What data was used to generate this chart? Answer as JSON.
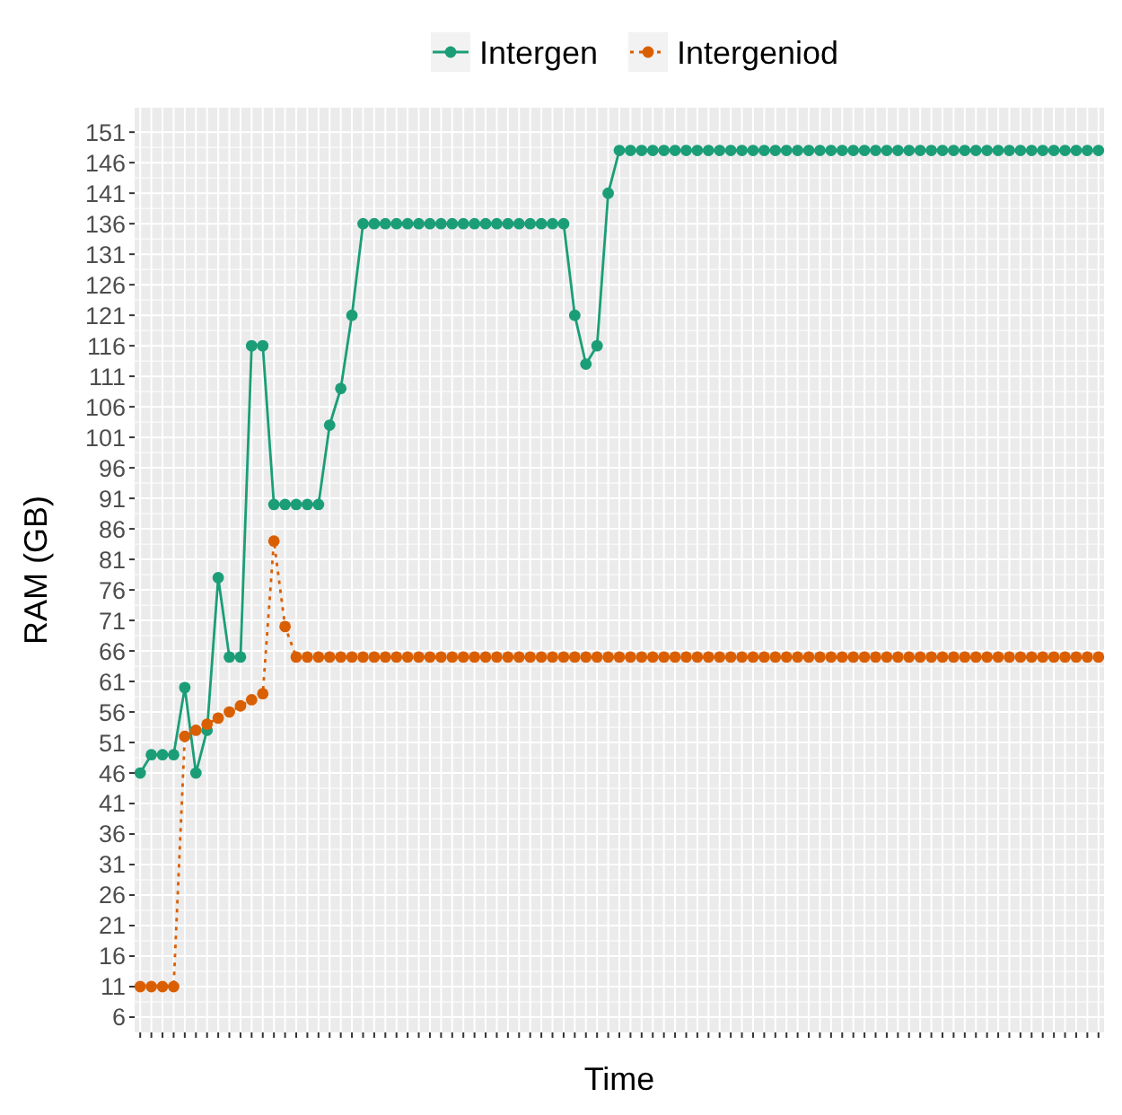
{
  "chart_data": {
    "type": "line",
    "xlabel": "Time",
    "ylabel": "RAM (GB)",
    "categories": [
      null,
      null,
      null,
      null,
      null,
      null,
      null,
      null,
      null,
      null,
      null,
      null,
      null,
      null,
      null,
      null,
      null,
      null,
      null,
      null,
      null,
      null,
      null,
      null,
      null,
      null,
      null,
      null,
      null,
      null,
      null,
      null,
      null,
      null,
      null,
      null,
      null,
      null,
      null,
      null,
      null,
      null,
      null,
      null,
      null,
      null,
      null,
      null,
      null,
      null,
      null,
      null,
      null,
      null,
      null,
      null,
      null,
      null,
      null,
      null,
      null,
      null,
      null,
      null,
      null,
      null,
      null,
      null,
      null,
      null,
      null,
      null,
      null,
      null,
      null,
      null,
      null,
      null,
      null,
      null,
      null,
      null,
      null,
      null,
      null,
      null,
      null
    ],
    "series": [
      {
        "name": "Intergen",
        "color": "#1b9e77",
        "line_style": "solid",
        "values": [
          46,
          49,
          49,
          49,
          60,
          46,
          53,
          78,
          65,
          65,
          116,
          116,
          90,
          90,
          90,
          90,
          90,
          103,
          109,
          121,
          136,
          136,
          136,
          136,
          136,
          136,
          136,
          136,
          136,
          136,
          136,
          136,
          136,
          136,
          136,
          136,
          136,
          136,
          136,
          121,
          113,
          116,
          141,
          148,
          148,
          148,
          148,
          148,
          148,
          148,
          148,
          148,
          148,
          148,
          148,
          148,
          148,
          148,
          148,
          148,
          148,
          148,
          148,
          148,
          148,
          148,
          148,
          148,
          148,
          148,
          148,
          148,
          148,
          148,
          148,
          148,
          148,
          148,
          148,
          148,
          148,
          148,
          148,
          148,
          148,
          148,
          148
        ]
      },
      {
        "name": "Intergeniod",
        "color": "#d95f02",
        "line_style": "dotted",
        "values": [
          11,
          11,
          11,
          11,
          52,
          53,
          54,
          55,
          56,
          57,
          58,
          59,
          84,
          70,
          65,
          65,
          65,
          65,
          65,
          65,
          65,
          65,
          65,
          65,
          65,
          65,
          65,
          65,
          65,
          65,
          65,
          65,
          65,
          65,
          65,
          65,
          65,
          65,
          65,
          65,
          65,
          65,
          65,
          65,
          65,
          65,
          65,
          65,
          65,
          65,
          65,
          65,
          65,
          65,
          65,
          65,
          65,
          65,
          65,
          65,
          65,
          65,
          65,
          65,
          65,
          65,
          65,
          65,
          65,
          65,
          65,
          65,
          65,
          65,
          65,
          65,
          65,
          65,
          65,
          65,
          65,
          65,
          65,
          65,
          65,
          65,
          65
        ]
      }
    ],
    "ylim": [
      3.5,
      155
    ],
    "yticks": [
      6,
      11,
      16,
      21,
      26,
      31,
      36,
      41,
      46,
      51,
      56,
      61,
      66,
      71,
      76,
      81,
      86,
      91,
      96,
      101,
      106,
      111,
      116,
      121,
      126,
      131,
      136,
      141,
      146,
      151
    ],
    "grid": true,
    "legend": "top",
    "marker": "circle"
  }
}
